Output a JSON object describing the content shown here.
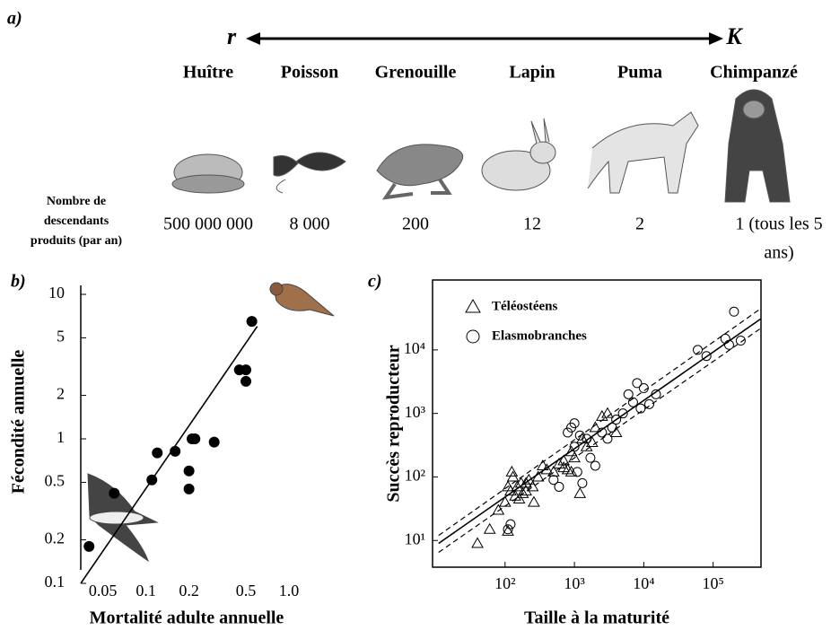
{
  "panel_a": {
    "label": "a)",
    "left_end": "r",
    "right_end": "K",
    "species": [
      "Huître",
      "Poisson",
      "Grenouille",
      "Lapin",
      "Puma",
      "Chimpanzé"
    ],
    "row_label": [
      "Nombre de",
      "descendants",
      "produits (par an)"
    ],
    "offspring": [
      [
        "500 000 000"
      ],
      [
        "8 000"
      ],
      [
        "200"
      ],
      [
        "12"
      ],
      [
        "2"
      ],
      [
        "1 (tous les 5",
        "ans)"
      ]
    ]
  },
  "panel_b": {
    "label": "b)"
  },
  "panel_c": {
    "label": "c)"
  },
  "chart_data": [
    {
      "type": "scatter",
      "x_label": "Mortalité adulte annuelle",
      "y_label": "Fécondité annuelle",
      "log_x": true,
      "log_y": true,
      "frame": "left",
      "xlim": [
        0.035,
        1.0
      ],
      "ylim": [
        0.1,
        10
      ],
      "xticks": [
        0.05,
        0.1,
        0.2,
        0.5,
        {
          "value": 1,
          "label": "1.0"
        }
      ],
      "yticks": [
        10,
        5,
        2,
        1,
        0.5,
        0.2,
        0.1
      ],
      "series": [
        {
          "marker": "circle",
          "filled": true,
          "color": "#000",
          "x": [
            0.04,
            0.06,
            0.11,
            0.12,
            0.16,
            0.2,
            0.2,
            0.21,
            0.22,
            0.3,
            0.45,
            0.5,
            0.5,
            0.55
          ],
          "values": [
            0.18,
            0.42,
            0.52,
            0.8,
            0.82,
            0.6,
            0.45,
            1.0,
            1.0,
            0.95,
            3.0,
            3.0,
            2.5,
            6.5
          ]
        }
      ],
      "lines": [
        {
          "style": "solid",
          "x": [
            0.035,
            0.6
          ],
          "values": [
            0.1,
            6
          ]
        }
      ]
    },
    {
      "type": "scatter",
      "x_label": "Taille à la maturité",
      "y_label": "Succès reproducteur",
      "log_x": true,
      "log_y": true,
      "frame": "box",
      "xlim": [
        9,
        490000
      ],
      "ylim": [
        3.8,
        126000
      ],
      "xticks": [
        {
          "value": 100,
          "label": "10²"
        },
        {
          "value": 1000,
          "label": "10³"
        },
        {
          "value": 10000,
          "label": "10⁴"
        },
        {
          "value": 100000,
          "label": "10⁵"
        }
      ],
      "yticks": [
        {
          "value": 10,
          "label": "10¹"
        },
        {
          "value": 100,
          "label": "10²"
        },
        {
          "value": 1000,
          "label": "10³"
        },
        {
          "value": 10000,
          "label": "10⁴"
        }
      ],
      "series": [
        {
          "name": "Téléostéens",
          "marker": "triangle",
          "filled": false,
          "color": "#000",
          "x": [
            40,
            60,
            80,
            100,
            110,
            120,
            125,
            130,
            140,
            150,
            160,
            170,
            180,
            200,
            220,
            250,
            260,
            300,
            350,
            400,
            500,
            600,
            700,
            800,
            900,
            1000,
            1200,
            1500,
            1800,
            2000,
            2500,
            3000,
            4000,
            900,
            1300,
            700,
            110,
            200
          ],
          "values": [
            9,
            15,
            30,
            40,
            14,
            60,
            120,
            100,
            50,
            70,
            45,
            80,
            55,
            60,
            90,
            70,
            40,
            100,
            150,
            130,
            120,
            160,
            180,
            130,
            250,
            200,
            55,
            300,
            350,
            600,
            900,
            1000,
            500,
            120,
            400,
            140,
            70,
            80
          ]
        },
        {
          "name": "Elasmobranches",
          "marker": "circle",
          "filled": false,
          "color": "#000",
          "x": [
            120,
            110,
            500,
            600,
            800,
            900,
            1000,
            1100,
            1300,
            1500,
            1700,
            2000,
            2500,
            3000,
            4000,
            5000,
            6000,
            7000,
            8000,
            9000,
            10000,
            12000,
            15000,
            60000,
            80000,
            150000,
            170000,
            200000,
            250000,
            1000,
            1200,
            3500
          ],
          "values": [
            18,
            15,
            90,
            70,
            500,
            600,
            300,
            120,
            80,
            400,
            200,
            150,
            500,
            400,
            800,
            1000,
            2000,
            1500,
            3000,
            1200,
            2500,
            1400,
            2000,
            10000,
            8000,
            15000,
            12000,
            40000,
            14000,
            700,
            450,
            600
          ]
        }
      ],
      "lines": [
        {
          "style": "solid",
          "x": [
            11,
            490000
          ],
          "values": [
            9,
            31000
          ]
        },
        {
          "style": "dashed",
          "x": [
            11,
            490000
          ],
          "values": [
            12,
            45000
          ]
        },
        {
          "style": "dashed",
          "x": [
            11,
            490000
          ],
          "values": [
            6.5,
            22000
          ]
        }
      ]
    }
  ]
}
